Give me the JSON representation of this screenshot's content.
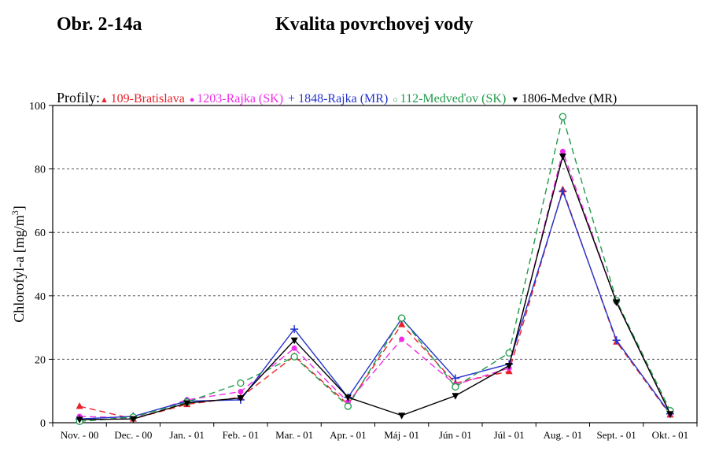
{
  "header": {
    "figure_label": "Obr. 2-14a",
    "title": "Kvalita povrchovej vody"
  },
  "colors": {
    "red": "#e8212a",
    "magenta": "#f02ce8",
    "blue": "#2433cc",
    "green": "#1f9a4a",
    "black": "#000000"
  },
  "chart_data": {
    "type": "line",
    "legend_prefix": "Profily:",
    "ylabel": "Chlorofyl-a [mg/m",
    "ylabel_sup": "3",
    "ylabel_end": "]",
    "ylim": [
      0,
      100
    ],
    "yticks": [
      0,
      20,
      40,
      60,
      80,
      100
    ],
    "grid": "horizontal dashed at 20, 40, 60, 80",
    "legend_position": "top",
    "categories": [
      "Nov. - 00",
      "Dec. - 00",
      "Jan. - 01",
      "Feb. - 01",
      "Mar. - 01",
      "Apr. - 01",
      "Máj - 01",
      "Jún - 01",
      "Júl - 01",
      "Aug. - 01",
      "Sept. - 01",
      "Okt. - 01"
    ],
    "series": [
      {
        "name": "109-Bratislava",
        "color": "#e8212a",
        "marker": "triangle-up",
        "dashed": true,
        "values": [
          5.2,
          1.2,
          5.8,
          8.0,
          21.0,
          5.8,
          31.0,
          12.5,
          16.2,
          73.5,
          25.5,
          2.5
        ]
      },
      {
        "name": "1203-Rajka (SK)",
        "color": "#f02ce8",
        "marker": "dot",
        "dashed": true,
        "values": [
          2.0,
          1.5,
          7.2,
          9.8,
          23.5,
          6.5,
          26.3,
          12.0,
          17.2,
          85.5,
          38.0,
          3.0
        ]
      },
      {
        "name": "1848-Rajka (MR)",
        "color": "#2433cc",
        "marker": "plus",
        "dashed": false,
        "values": [
          1.2,
          2.0,
          6.8,
          7.2,
          29.5,
          8.0,
          32.8,
          14.0,
          18.5,
          73.0,
          26.0,
          2.8
        ]
      },
      {
        "name": "112-Medveďov (SK)",
        "color": "#1f9a4a",
        "marker": "circle",
        "dashed": true,
        "values": [
          0.4,
          1.8,
          6.5,
          12.5,
          20.8,
          5.2,
          33.0,
          11.3,
          22.0,
          96.5,
          38.5,
          3.8
        ]
      },
      {
        "name": "1806-Medve (MR)",
        "color": "#000000",
        "marker": "triangle-down",
        "dashed": false,
        "values": [
          1.0,
          1.2,
          6.2,
          7.8,
          26.0,
          8.0,
          2.3,
          8.5,
          18.0,
          84.0,
          38.0,
          2.8
        ]
      }
    ]
  }
}
